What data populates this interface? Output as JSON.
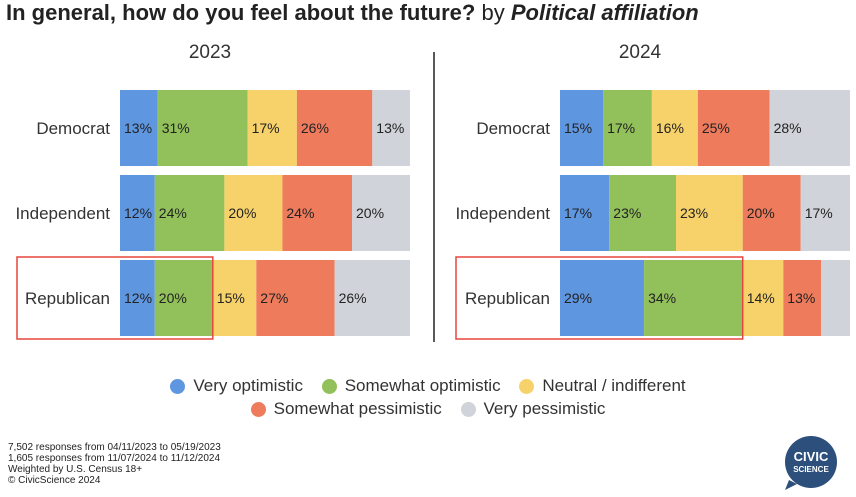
{
  "title": {
    "main": "In general, how do you feel about the future?",
    "by": "by",
    "affiliation": "Political affiliation"
  },
  "chart_data": {
    "type": "bar",
    "stacked": true,
    "orientation": "horizontal",
    "percent_scale": [
      0,
      100
    ],
    "categories": [
      "Democrat",
      "Independent",
      "Republican"
    ],
    "highlighted_category": "Republican",
    "highlight_color": "#e8453c",
    "series_names": [
      "Very optimistic",
      "Somewhat optimistic",
      "Neutral / indifferent",
      "Somewhat pessimistic",
      "Very pessimistic"
    ],
    "series_colors": [
      "#5f96e0",
      "#92c05a",
      "#f7d26a",
      "#ee7b5c",
      "#d0d3d9"
    ],
    "panels": [
      {
        "title": "2023",
        "rows": [
          {
            "category": "Democrat",
            "values": [
              13,
              31,
              17,
              26,
              13
            ],
            "labels": [
              "13%",
              "31%",
              "17%",
              "26%",
              "13%"
            ]
          },
          {
            "category": "Independent",
            "values": [
              12,
              24,
              20,
              24,
              20
            ],
            "labels": [
              "12%",
              "24%",
              "20%",
              "24%",
              "20%"
            ]
          },
          {
            "category": "Republican",
            "values": [
              12,
              20,
              15,
              27,
              26
            ],
            "labels": [
              "12%",
              "20%",
              "15%",
              "27%",
              "26%"
            ]
          }
        ]
      },
      {
        "title": "2024",
        "rows": [
          {
            "category": "Democrat",
            "values": [
              15,
              17,
              16,
              25,
              28
            ],
            "labels": [
              "15%",
              "17%",
              "16%",
              "25%",
              "28%"
            ]
          },
          {
            "category": "Independent",
            "values": [
              17,
              23,
              23,
              20,
              17
            ],
            "labels": [
              "17%",
              "23%",
              "23%",
              "20%",
              "17%"
            ]
          },
          {
            "category": "Republican",
            "values": [
              29,
              34,
              14,
              13,
              10
            ],
            "labels": [
              "29%",
              "34%",
              "14%",
              "13%",
              ""
            ]
          }
        ]
      }
    ]
  },
  "footer": [
    "7,502 responses from 04/11/2023 to 05/19/2023",
    "1,605 responses from 11/07/2024 to 11/12/2024",
    "Weighted by U.S. Census 18+",
    "© CivicScience 2024"
  ],
  "logo": {
    "line1": "CIVIC",
    "line2": "SCIENCE",
    "color": "#2c4f7c"
  }
}
